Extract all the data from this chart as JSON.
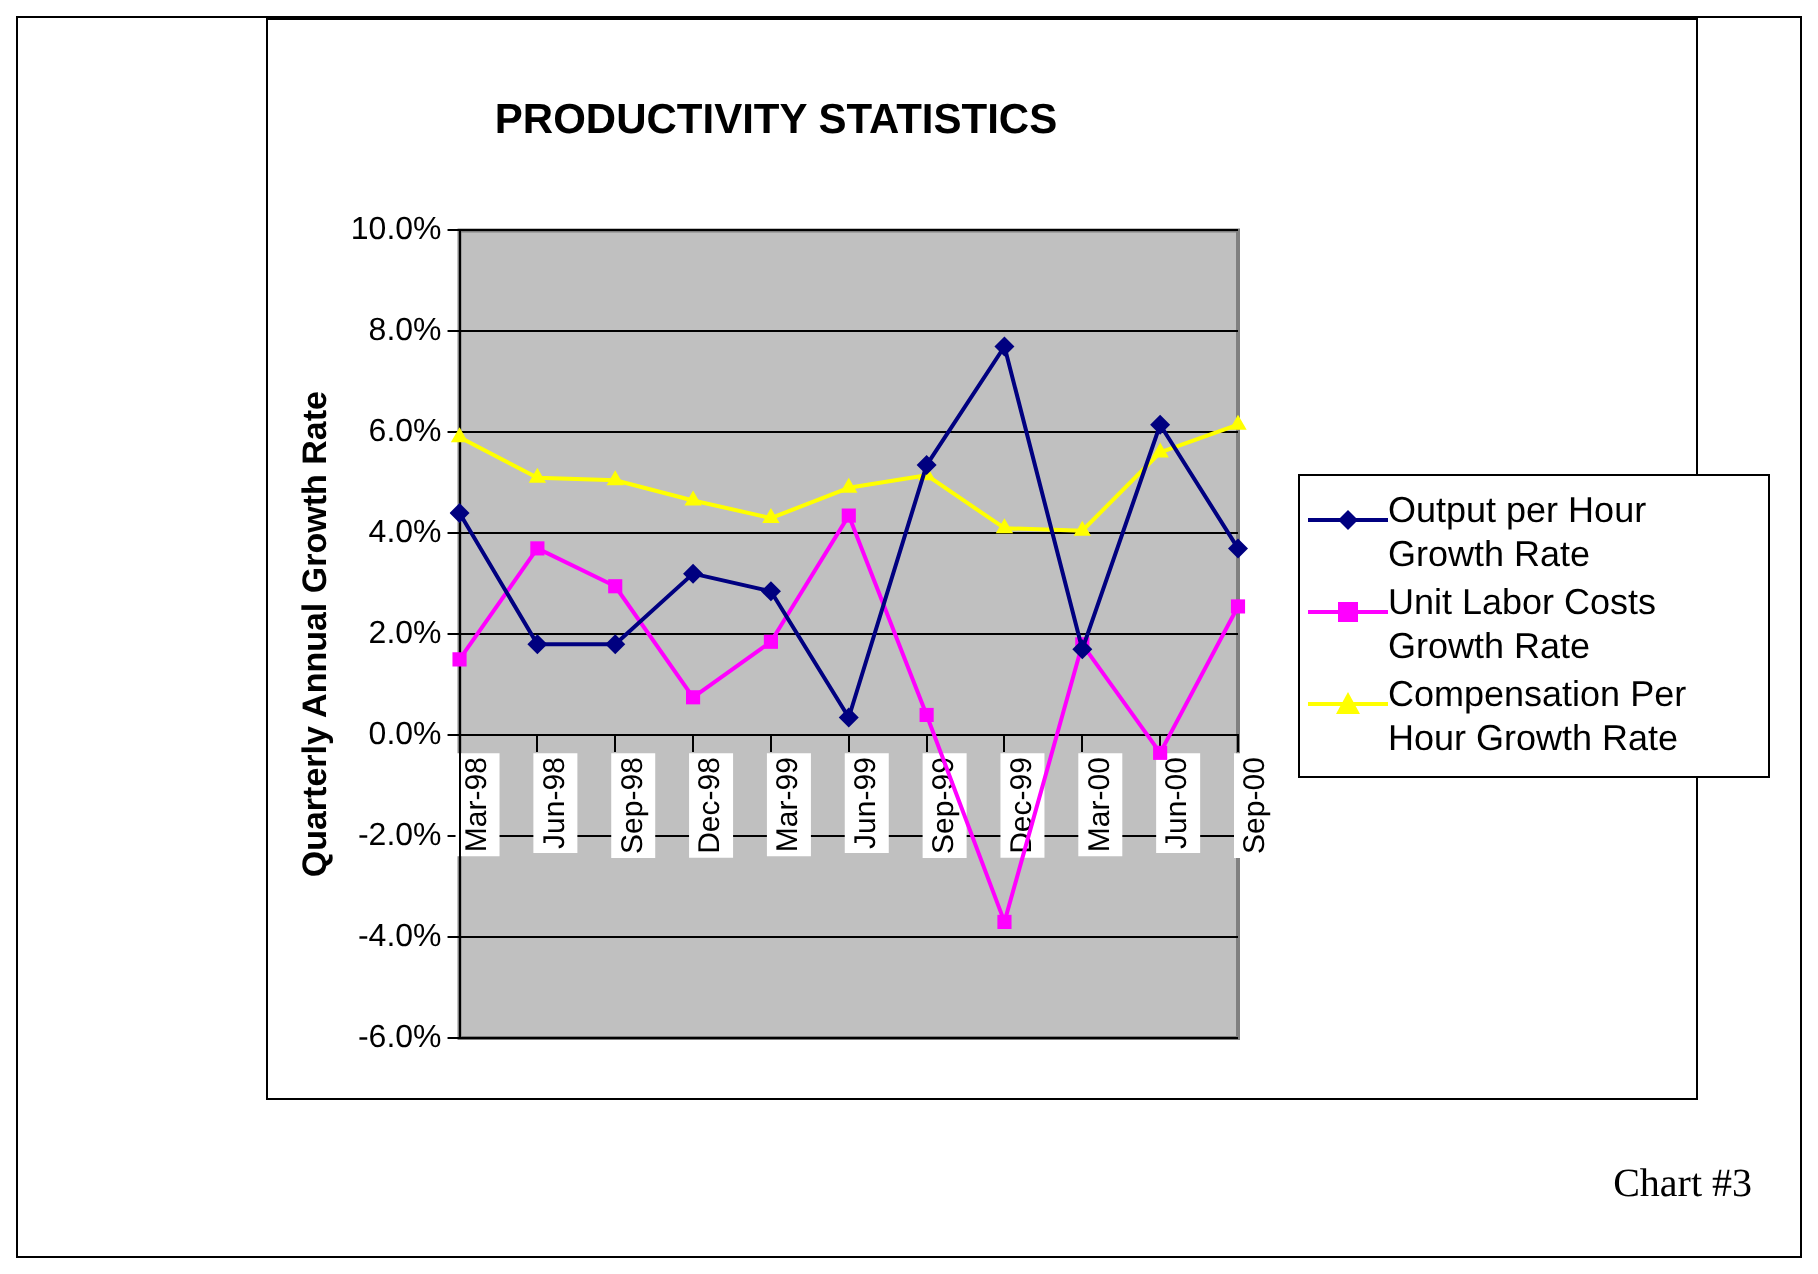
{
  "chart_data": {
    "type": "line",
    "title": "PRODUCTIVITY STATISTICS",
    "ylabel": "Quarterly Annual Growth Rate",
    "categories": [
      "Mar-98",
      "Jun-98",
      "Sep-98",
      "Dec-98",
      "Mar-99",
      "Jun-99",
      "Sep-99",
      "Dec-99",
      "Mar-00",
      "Jun-00",
      "Sep-00"
    ],
    "series": [
      {
        "name": "Output per Hour Growth Rate",
        "color": "#000080",
        "marker": "diamond",
        "values": [
          4.4,
          1.8,
          1.8,
          3.2,
          2.85,
          0.35,
          5.35,
          7.7,
          1.7,
          6.15,
          3.7
        ]
      },
      {
        "name": "Unit Labor Costs Growth Rate",
        "color": "#ff00ff",
        "marker": "square",
        "values": [
          1.5,
          3.7,
          2.95,
          0.75,
          1.85,
          4.35,
          0.4,
          -3.7,
          1.8,
          -0.35,
          2.55
        ]
      },
      {
        "name": "Compensation Per Hour Growth Rate",
        "color": "#ffff00",
        "marker": "triangle",
        "values": [
          5.9,
          5.1,
          5.05,
          4.65,
          4.3,
          4.9,
          5.15,
          4.1,
          4.05,
          5.6,
          6.15
        ]
      }
    ],
    "ylim": [
      -6,
      10
    ],
    "yticks": [
      {
        "value": -6,
        "label": "-6.0%"
      },
      {
        "value": -4,
        "label": "-4.0%"
      },
      {
        "value": -2,
        "label": "-2.0%"
      },
      {
        "value": 0,
        "label": "0.0%"
      },
      {
        "value": 2,
        "label": "2.0%"
      },
      {
        "value": 4,
        "label": "4.0%"
      },
      {
        "value": 6,
        "label": "6.0%"
      },
      {
        "value": 8,
        "label": "8.0%"
      },
      {
        "value": 10,
        "label": "10.0%"
      }
    ],
    "grid": "y",
    "legend": "right",
    "annotations": [
      "Chart #3"
    ]
  }
}
